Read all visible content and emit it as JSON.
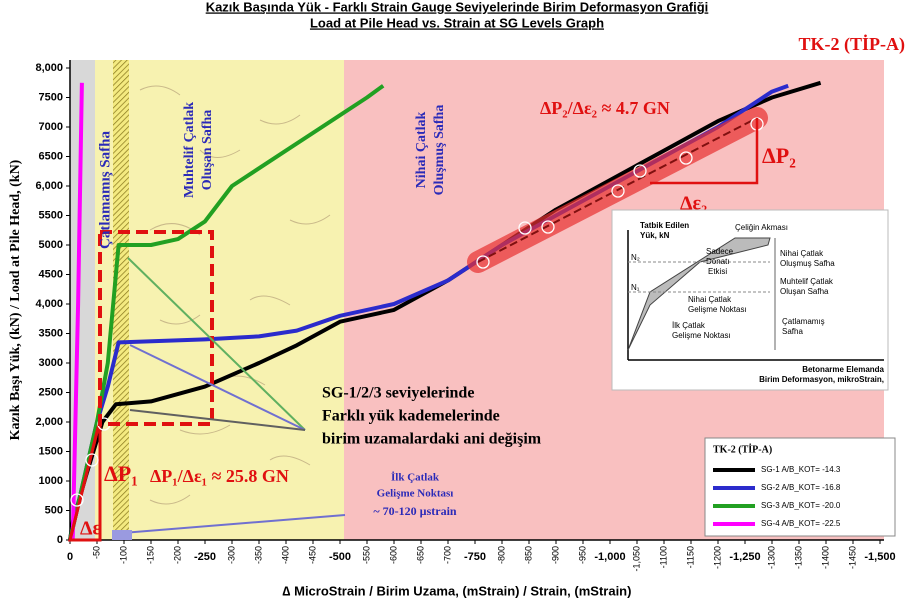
{
  "chart_data": {
    "type": "line",
    "title": "Kazık Başında Yük - Farklı Strain Gauge Seviyelerinde Birim Deformasyon Grafiği",
    "subtitle": "Load at Pile Head vs. Strain at SG Levels Graph",
    "tag": "TK-2 (TİP-A)",
    "ylabel": "Kazık Başı Yük, (kN) / Load at Pile Head, (kN)",
    "xlabel": "∆ MicroStrain / Birim Uzama, (mStrain) / Strain, (mStrain)",
    "xlim": [
      0,
      -1500
    ],
    "ylim": [
      0,
      8000
    ],
    "xticks": [
      0,
      -50,
      -100,
      -150,
      -200,
      -250,
      -300,
      -350,
      -400,
      -450,
      -500,
      -550,
      -600,
      -650,
      -700,
      -750,
      -800,
      -850,
      -900,
      -950,
      {
        "value": -1000,
        "label": "-1,000"
      },
      {
        "value": -1050,
        "label": "-1,050"
      },
      -1100,
      -1150,
      -1200,
      {
        "value": -1250,
        "label": "-1,250"
      },
      -1300,
      -1350,
      -1400,
      -1450,
      {
        "value": -1500,
        "label": "-1,500"
      }
    ],
    "yticks": [
      0,
      500,
      1000,
      1500,
      {
        "value": 2000,
        "label": "2,000"
      },
      2500,
      3000,
      3500,
      {
        "value": 4000,
        "label": "4,000"
      },
      4500,
      5000,
      5500,
      {
        "value": 6000,
        "label": "6,000"
      },
      6500,
      7000,
      7500,
      {
        "value": 8000,
        "label": "8,000"
      }
    ],
    "grid": false,
    "legend_title": "TK-2 (TİP-A)",
    "legend_position": "lower right",
    "series": [
      {
        "name": "SG-1 A/B_KOT= -14.3",
        "color": "#000000",
        "x": [
          0,
          -5,
          -30,
          -60,
          -85,
          -150,
          -250,
          -350,
          -420,
          -500,
          -600,
          -700,
          -800,
          -900,
          -1000,
          -1100,
          -1200,
          -1300,
          -1390
        ],
        "values": [
          0,
          300,
          1100,
          2000,
          2300,
          2350,
          2600,
          3000,
          3300,
          3700,
          3900,
          4400,
          5000,
          5600,
          6100,
          6600,
          7100,
          7500,
          7750
        ]
      },
      {
        "name": "SG-2 A/B_KOT= -16.8",
        "color": "#2b2bcc",
        "x": [
          0,
          -50,
          -70,
          -90,
          -250,
          -350,
          -420,
          -500,
          -600,
          -700,
          -800,
          -900,
          -1000,
          -1100,
          -1200,
          -1300,
          -1330
        ],
        "values": [
          0,
          2000,
          2600,
          3350,
          3400,
          3450,
          3550,
          3800,
          4000,
          4400,
          5000,
          5500,
          6000,
          6500,
          7000,
          7600,
          7700
        ]
      },
      {
        "name": "SG-3 A/B_KOT= -20.0",
        "color": "#22a022",
        "x": [
          0,
          -50,
          -70,
          -80,
          -90,
          -150,
          -200,
          -250,
          -300,
          -400,
          -500,
          -550,
          -580
        ],
        "values": [
          0,
          2000,
          3000,
          4000,
          5000,
          5000,
          5100,
          5400,
          6000,
          6600,
          7200,
          7500,
          7700
        ]
      },
      {
        "name": "SG-4 A/B_KOT= -22.5",
        "color": "#ff00ff",
        "x": [
          -5,
          -15,
          -22
        ],
        "values": [
          0,
          4000,
          7750
        ]
      }
    ],
    "annotations": [
      "Çatlamamış Safha",
      "Muhtelif Çatlak",
      "Oluşan Safha",
      "Nihai Çatlak",
      "Oluşmuş Safha",
      "SG-1/2/3 seviyelerinde",
      "Farklı yük kademelerinde",
      "birim uzamalardaki ani değişim",
      "İlk Çatlak",
      "Gelişme Noktası",
      "~ 70-120 µstrain",
      "ΔP₁/Δε₁ ≈ 25.8 GN",
      "ΔP₂/Δε₂ ≈ 4.7 GN",
      "ΔP₁",
      "Δε",
      "ΔP₂",
      "Δε₂"
    ],
    "inset": {
      "y_label": [
        "Tatbik Edilen",
        "Yük, kN"
      ],
      "labels": [
        "Çeliğin Akması",
        "Sadece",
        "Donatı",
        "Etkisi",
        "Nihai Çatlak",
        "Oluşmuş Safha",
        "Muhtelif Çatlak",
        "Oluşan Safha",
        "Nihai Çatlak",
        "Gelişme Noktası",
        "İlk Çatlak",
        "Gelişme Noktası",
        "Çatlamamış",
        "Safha",
        "N₂",
        "N₁"
      ],
      "x_label": [
        "Betonarme Elemanda",
        "Birim Deformasyon, mikroStrain,"
      ]
    }
  }
}
